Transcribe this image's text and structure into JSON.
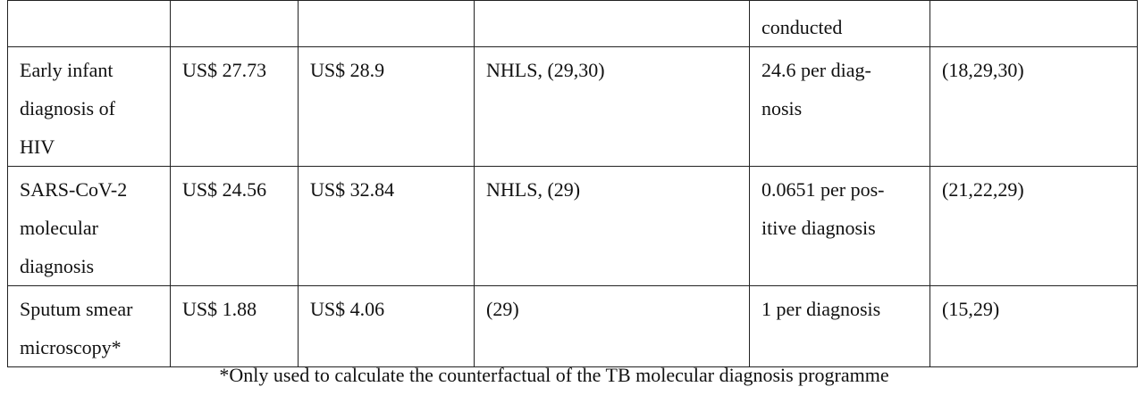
{
  "table": {
    "rows": [
      [
        [],
        [],
        [],
        [],
        [
          "conducted"
        ],
        []
      ],
      [
        [
          "Early infant",
          "diagnosis of",
          "HIV"
        ],
        [
          "US$ 27.73"
        ],
        [
          "US$ 28.9"
        ],
        [
          "NHLS, (29,30)"
        ],
        [
          "24.6 per diag-",
          "nosis"
        ],
        [
          "(18,29,30)"
        ]
      ],
      [
        [
          "SARS-CoV-2",
          "molecular",
          "diagnosis"
        ],
        [
          "US$ 24.56"
        ],
        [
          "US$ 32.84"
        ],
        [
          "NHLS, (29)"
        ],
        [
          "0.0651 per pos-",
          "itive diagnosis"
        ],
        [
          "(21,22,29)"
        ]
      ],
      [
        [
          "Sputum smear",
          "microscopy*"
        ],
        [
          "US$ 1.88"
        ],
        [
          "US$ 4.06"
        ],
        [
          "(29)"
        ],
        [
          "1 per diagnosis"
        ],
        [
          "(15,29)"
        ]
      ]
    ]
  },
  "footnote": "*Only used to calculate the counterfactual of the TB molecular diagnosis programme"
}
